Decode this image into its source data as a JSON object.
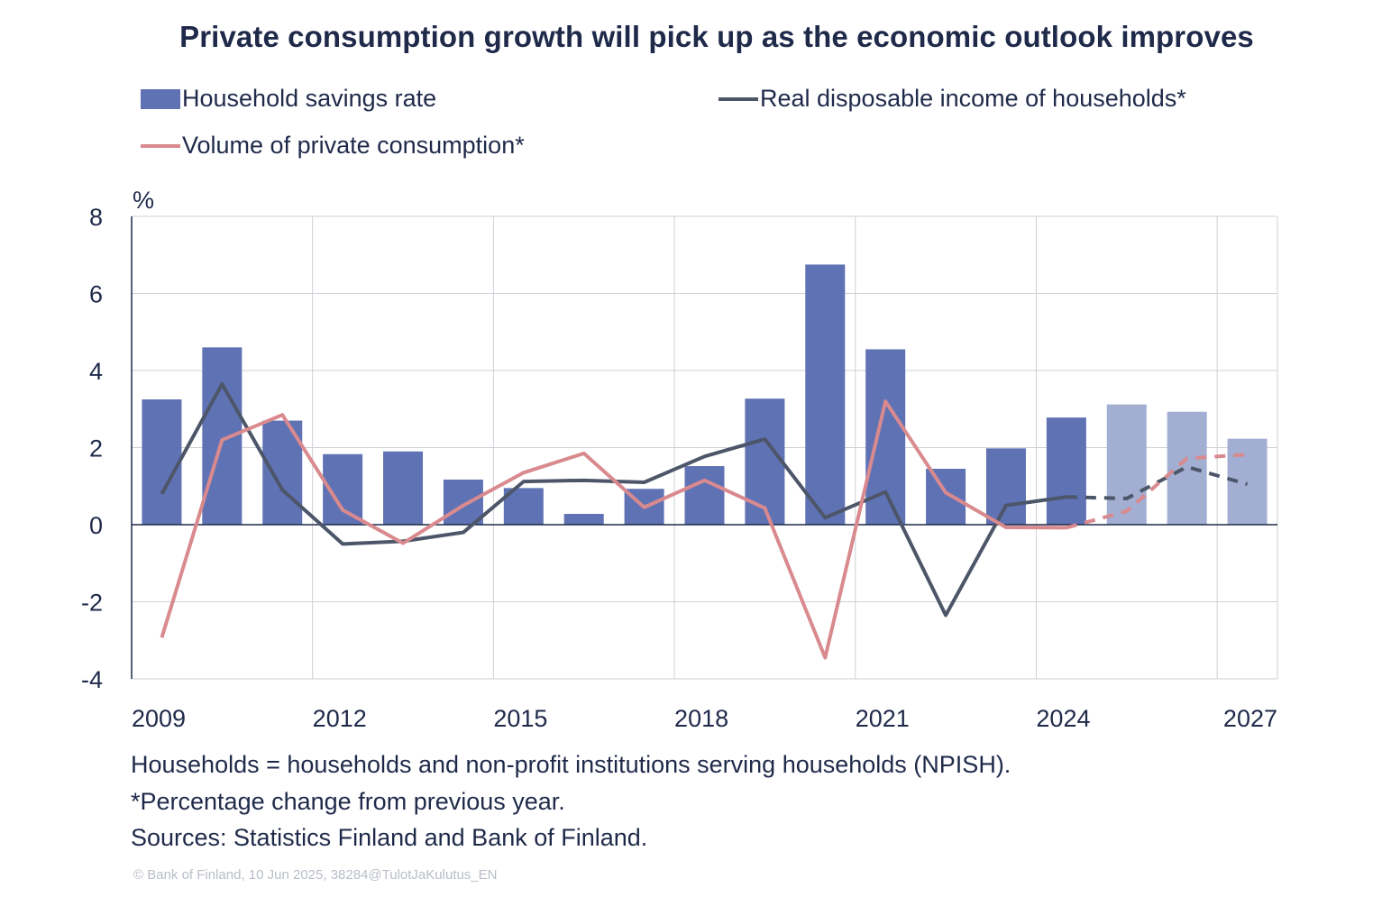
{
  "title": "Private consumption growth will pick up as the economic outlook improves",
  "legend": {
    "bar_label": "Household savings rate",
    "income_label": "Real disposable income of households*",
    "consumption_label": "Volume of private consumption*"
  },
  "colors": {
    "bar": "#5f72b4",
    "bar_forecast": "#a2aed2",
    "income": "#4d5669",
    "consumption": "#d98a8e",
    "grid": "#cfd0d6",
    "text": "#1f2a4a"
  },
  "chart_data": {
    "type": "bar",
    "title": "Private consumption growth will pick up as the economic outlook improves",
    "ylabel": "%",
    "xlabel": "",
    "ylim": [
      -4,
      8
    ],
    "yticks": [
      -4,
      -2,
      0,
      2,
      4,
      6,
      8
    ],
    "x_tick_labels": [
      "2009",
      "2012",
      "2015",
      "2018",
      "2021",
      "2024",
      "2027"
    ],
    "categories": [
      "2009",
      "2010",
      "2011",
      "2012",
      "2013",
      "2014",
      "2015",
      "2016",
      "2017",
      "2018",
      "2019",
      "2020",
      "2021",
      "2022",
      "2023",
      "2024",
      "2025",
      "2026",
      "2027"
    ],
    "forecast_from": "2025",
    "series": [
      {
        "name": "Household savings rate",
        "kind": "bar",
        "values": [
          3.25,
          4.6,
          2.7,
          1.83,
          1.9,
          1.17,
          0.95,
          0.28,
          0.93,
          1.52,
          3.27,
          6.75,
          4.55,
          1.45,
          1.98,
          2.78,
          3.12,
          2.93,
          2.23
        ]
      },
      {
        "name": "Real disposable income of households*",
        "kind": "line",
        "values": [
          0.8,
          3.65,
          0.9,
          -0.5,
          -0.43,
          -0.2,
          1.12,
          1.15,
          1.1,
          1.77,
          2.22,
          0.18,
          0.85,
          -2.35,
          0.5,
          0.72,
          0.68,
          1.5,
          1.05
        ]
      },
      {
        "name": "Volume of private consumption*",
        "kind": "line",
        "values": [
          -2.93,
          2.2,
          2.85,
          0.38,
          -0.48,
          0.5,
          1.35,
          1.85,
          0.45,
          1.15,
          0.43,
          -3.45,
          3.2,
          0.83,
          -0.07,
          -0.08,
          0.35,
          1.72,
          1.82
        ]
      }
    ]
  },
  "notes": [
    "Households = households and non-profit institutions serving households (NPISH).",
    "*Percentage change from previous year.",
    "Sources: Statistics Finland and Bank of Finland."
  ],
  "copyright": "© Bank of Finland, 10 Jun 2025, 38284@TulotJaKulutus_EN"
}
